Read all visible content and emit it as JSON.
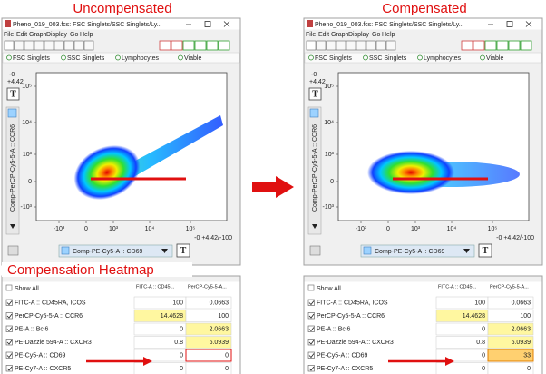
{
  "heatmap_label": "Compensation Heatmap",
  "panels": [
    {
      "heading": "Uncompensated",
      "window_title": "Pheno_019_003.fcs: FSC Singlets/SSC Singlets/Ly...",
      "menu": [
        "File",
        "Edit",
        "Graph",
        "Display",
        "Go",
        "Help"
      ],
      "breadcrumbs": [
        "FSC Singlets",
        "SSC Singlets",
        "Lymphocytes",
        "Viable"
      ],
      "range_top": [
        "-0",
        "+4.42"
      ],
      "yticks": [
        "10⁵",
        "10⁴",
        "10³",
        "0",
        "-10³"
      ],
      "xticks": [
        "-10³",
        "0",
        "10³",
        "10⁴",
        "10⁵"
      ],
      "y_axis_label": "Comp-PerCP-Cy5-5-A :: CCR6",
      "x_axis_label": "Comp-PE-Cy5-A :: CD69",
      "range_bottom": "-0 +4.42/-100",
      "button": "T"
    },
    {
      "heading": "Compensated",
      "window_title": "Pheno_019_003.fcs: FSC Singlets/SSC Singlets/Ly...",
      "menu": [
        "File",
        "Edit",
        "Graph",
        "Display",
        "Go",
        "Help"
      ],
      "breadcrumbs": [
        "FSC Singlets",
        "SSC Singlets",
        "Lymphocytes",
        "Viable"
      ],
      "range_top": [
        "-0",
        "+4.42"
      ],
      "yticks": [
        "10⁵",
        "10⁴",
        "10³",
        "0",
        "-10³"
      ],
      "xticks": [
        "-10³",
        "0",
        "10³",
        "10⁴",
        "10⁵"
      ],
      "y_axis_label": "Comp-PerCP-Cy5-5-A :: CCR6",
      "x_axis_label": "Comp-PE-Cy5-A :: CD69",
      "range_bottom": "-0 +4.42/-100",
      "button": "T"
    }
  ],
  "tables": [
    {
      "show_all": "Show All",
      "columns": [
        "FITC-A :: CD45...",
        "PerCP-Cy5-5-A..."
      ],
      "rows": [
        [
          "FITC-A :: CD45RA, ICOS",
          "100",
          "0.0663"
        ],
        [
          "PerCP-Cy5-5-A :: CCR6",
          "14.4628",
          "100"
        ],
        [
          "PE-A :: Bcl6",
          "0",
          "2.0663"
        ],
        [
          "PE-Dazzle 594-A :: CXCR3",
          "0.8",
          "6.0939"
        ],
        [
          "PE-Cy5-A :: CD69",
          "0",
          "0"
        ],
        [
          "PE-Cy7-A :: CXCR5",
          "0",
          "0"
        ]
      ]
    },
    {
      "show_all": "Show All",
      "columns": [
        "FITC-A :: CD45...",
        "PerCP-Cy5-5-A..."
      ],
      "rows": [
        [
          "FITC-A :: CD45RA, ICOS",
          "100",
          "0.0663"
        ],
        [
          "PerCP-Cy5-5-A :: CCR6",
          "14.4628",
          "100"
        ],
        [
          "PE-A :: Bcl6",
          "0",
          "2.0663"
        ],
        [
          "PE-Dazzle 594-A :: CXCR3",
          "0.8",
          "6.0939"
        ],
        [
          "PE-Cy5-A :: CD69",
          "0",
          "33"
        ],
        [
          "PE-Cy7-A :: CXCR5",
          "0",
          "0"
        ]
      ]
    }
  ]
}
